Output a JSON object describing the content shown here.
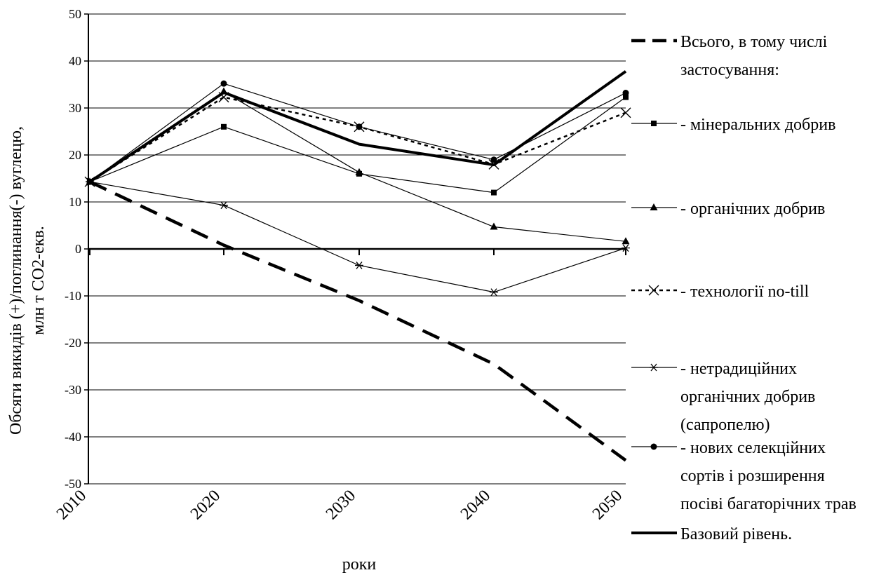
{
  "chart_data": {
    "type": "line",
    "title": "",
    "xlabel": "роки",
    "ylabel_line1": "Обсяги викидів (+)/поглинання(-) вуглецю,",
    "ylabel_line2": "млн т СО2-екв.",
    "x": [
      "2010",
      "2020",
      "2030",
      "2040",
      "2050"
    ],
    "ylim": [
      -50,
      50
    ],
    "yticks": [
      50,
      40,
      30,
      20,
      10,
      0,
      -10,
      -20,
      -30,
      -40,
      -50
    ],
    "grid": true,
    "legend_position": "right",
    "series": [
      {
        "name": "Всього, в тому числі застосування:",
        "legend_lines": [
          "Всього, в тому числі",
          "застосування:"
        ],
        "values": [
          14.3,
          0.8,
          -11,
          -24.5,
          -45
        ],
        "style": "dashed-thick",
        "marker": "none"
      },
      {
        "name": "- мінеральних добрив",
        "legend_lines": [
          "- мінеральних добрив"
        ],
        "values": [
          14.3,
          26,
          16,
          12,
          32.3
        ],
        "style": "solid-thin",
        "marker": "square"
      },
      {
        "name": "- органічних добрив",
        "legend_lines": [
          "- органічних добрив"
        ],
        "values": [
          14.3,
          33.5,
          16.3,
          4.7,
          1.6
        ],
        "style": "solid-thin",
        "marker": "triangle"
      },
      {
        "name": "- технології no-till",
        "legend_lines": [
          "- технології no-till"
        ],
        "values": [
          14.3,
          32.3,
          26,
          18,
          29
        ],
        "style": "dotted",
        "marker": "x"
      },
      {
        "name": "- нетрадиційних органічних добрив (сапропелю)",
        "legend_lines": [
          "- нетрадиційних",
          "органічних добрив",
          "(сапропелю)"
        ],
        "values": [
          14.3,
          9.3,
          -3.5,
          -9.2,
          0.2
        ],
        "style": "solid-thin",
        "marker": "star"
      },
      {
        "name": "- нових селекційних сортів і розширення посіві багаторічних трав",
        "legend_lines": [
          "- нових селекційних",
          "сортів і розширення",
          "посіві багаторічних трав"
        ],
        "values": [
          14.3,
          35.2,
          26,
          19,
          33.2
        ],
        "style": "solid-thin",
        "marker": "circle"
      },
      {
        "name": "Базовий рівень.",
        "legend_lines": [
          "Базовий рівень."
        ],
        "values": [
          14.3,
          33.3,
          22.3,
          17.9,
          37.8
        ],
        "style": "solid-thick",
        "marker": "none"
      }
    ]
  }
}
